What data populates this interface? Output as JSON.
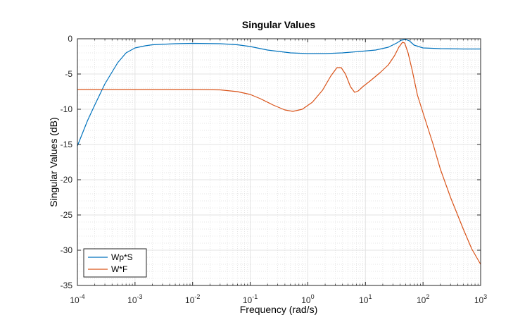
{
  "chart_data": {
    "type": "line",
    "title": "Singular Values",
    "xlabel": "Frequency (rad/s)",
    "ylabel": "Singular Values (dB)",
    "xscale": "log",
    "xlim": [
      0.0001,
      1000
    ],
    "ylim": [
      -35,
      0
    ],
    "grid": true,
    "legend_position": "bottom-left",
    "x_ticks": [
      0.0001,
      0.001,
      0.01,
      0.1,
      1,
      10,
      100,
      1000
    ],
    "x_tick_labels": [
      {
        "base": "10",
        "exp": "-4"
      },
      {
        "base": "10",
        "exp": "-3"
      },
      {
        "base": "10",
        "exp": "-2"
      },
      {
        "base": "10",
        "exp": "-1"
      },
      {
        "base": "10",
        "exp": "0"
      },
      {
        "base": "10",
        "exp": "1"
      },
      {
        "base": "10",
        "exp": "2"
      },
      {
        "base": "10",
        "exp": "3"
      }
    ],
    "y_ticks": [
      0,
      -5,
      -10,
      -15,
      -20,
      -25,
      -30,
      -35
    ],
    "y_tick_labels": [
      "0",
      "-5",
      "-10",
      "-15",
      "-20",
      "-25",
      "-30",
      "-35"
    ],
    "series": [
      {
        "name": "Wp*S",
        "color": "#0072BD",
        "points": [
          [
            0.0001,
            -15.2
          ],
          [
            0.00015,
            -11.6
          ],
          [
            0.0002,
            -9.4
          ],
          [
            0.0003,
            -6.4
          ],
          [
            0.0005,
            -3.4
          ],
          [
            0.0007,
            -2.0
          ],
          [
            0.001,
            -1.3
          ],
          [
            0.0015,
            -1.0
          ],
          [
            0.002,
            -0.85
          ],
          [
            0.005,
            -0.7
          ],
          [
            0.01,
            -0.65
          ],
          [
            0.03,
            -0.7
          ],
          [
            0.06,
            -0.85
          ],
          [
            0.1,
            -1.1
          ],
          [
            0.2,
            -1.6
          ],
          [
            0.5,
            -2.0
          ],
          [
            1,
            -2.1
          ],
          [
            2,
            -2.1
          ],
          [
            4,
            -2.0
          ],
          [
            8,
            -1.8
          ],
          [
            15,
            -1.6
          ],
          [
            25,
            -1.2
          ],
          [
            35,
            -0.6
          ],
          [
            42,
            -0.2
          ],
          [
            50,
            -0.1
          ],
          [
            58,
            -0.3
          ],
          [
            70,
            -0.9
          ],
          [
            100,
            -1.3
          ],
          [
            200,
            -1.4
          ],
          [
            500,
            -1.45
          ],
          [
            1000,
            -1.45
          ]
        ]
      },
      {
        "name": "W*F",
        "color": "#D95319",
        "points": [
          [
            0.0001,
            -7.2
          ],
          [
            0.001,
            -7.2
          ],
          [
            0.01,
            -7.2
          ],
          [
            0.03,
            -7.25
          ],
          [
            0.06,
            -7.5
          ],
          [
            0.1,
            -7.9
          ],
          [
            0.15,
            -8.5
          ],
          [
            0.25,
            -9.4
          ],
          [
            0.4,
            -10.1
          ],
          [
            0.55,
            -10.3
          ],
          [
            0.8,
            -10.0
          ],
          [
            1.2,
            -9.0
          ],
          [
            1.8,
            -7.3
          ],
          [
            2.5,
            -5.3
          ],
          [
            3.2,
            -4.1
          ],
          [
            3.8,
            -4.1
          ],
          [
            4.5,
            -5.0
          ],
          [
            5.5,
            -6.8
          ],
          [
            6.5,
            -7.6
          ],
          [
            7.5,
            -7.4
          ],
          [
            9,
            -6.8
          ],
          [
            12,
            -6.0
          ],
          [
            18,
            -4.8
          ],
          [
            25,
            -3.7
          ],
          [
            32,
            -2.4
          ],
          [
            38,
            -1.2
          ],
          [
            44,
            -0.5
          ],
          [
            48,
            -0.6
          ],
          [
            55,
            -2.0
          ],
          [
            65,
            -4.5
          ],
          [
            80,
            -8.0
          ],
          [
            100,
            -10.5
          ],
          [
            150,
            -15.0
          ],
          [
            200,
            -18.5
          ],
          [
            300,
            -22.5
          ],
          [
            500,
            -27.0
          ],
          [
            700,
            -29.8
          ],
          [
            1000,
            -32.0
          ]
        ]
      }
    ]
  }
}
